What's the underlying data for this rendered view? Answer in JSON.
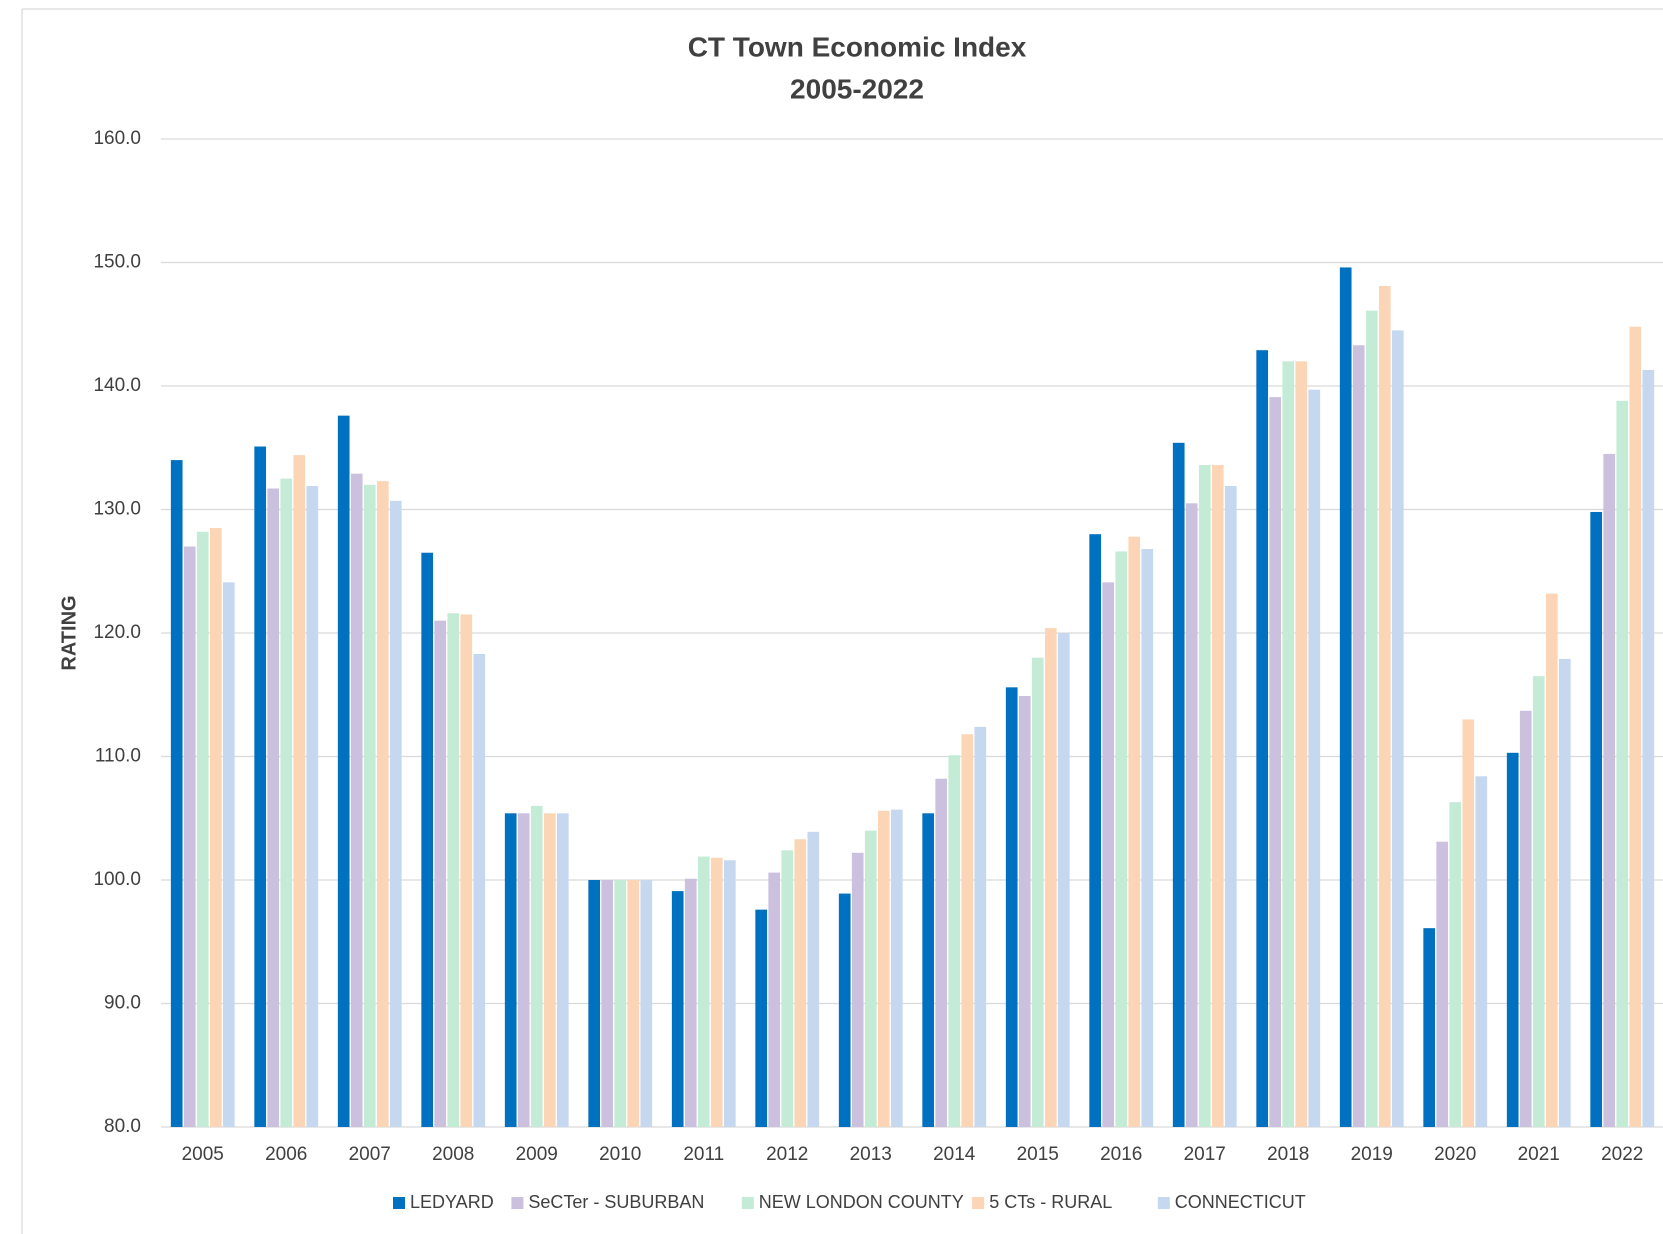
{
  "chart_data": {
    "type": "bar",
    "title": "CT Town Economic Index",
    "subtitle": "2005-2022",
    "y_label": "RATING",
    "categories": [
      "2005",
      "2006",
      "2007",
      "2008",
      "2009",
      "2010",
      "2011",
      "2012",
      "2013",
      "2014",
      "2015",
      "2016",
      "2017",
      "2018",
      "2019",
      "2020",
      "2021",
      "2022"
    ],
    "series": [
      {
        "name": "LEDYARD",
        "color": "#0070c0",
        "values": [
          134.0,
          135.1,
          137.6,
          126.5,
          105.4,
          100.0,
          99.1,
          97.6,
          98.9,
          105.4,
          115.6,
          128.0,
          135.4,
          142.9,
          149.6,
          96.1,
          110.3,
          129.8
        ]
      },
      {
        "name": "SeCTer - SUBURBAN",
        "color": "#cbc0dd",
        "values": [
          127.0,
          131.7,
          132.9,
          121.0,
          105.4,
          100.0,
          100.1,
          100.6,
          102.2,
          108.2,
          114.9,
          124.1,
          130.5,
          139.1,
          143.3,
          103.1,
          113.7,
          134.5
        ]
      },
      {
        "name": "NEW LONDON COUNTY",
        "color": "#c3ebd5",
        "values": [
          128.2,
          132.5,
          132.0,
          121.6,
          106.0,
          100.0,
          101.9,
          102.4,
          104.0,
          110.1,
          118.0,
          126.6,
          133.6,
          142.0,
          146.1,
          106.3,
          116.5,
          138.8
        ]
      },
      {
        "name": "5 CTs - RURAL",
        "color": "#fbd5b5",
        "values": [
          128.5,
          134.4,
          132.3,
          121.5,
          105.4,
          100.0,
          101.8,
          103.3,
          105.6,
          111.8,
          120.4,
          127.8,
          133.6,
          142.0,
          148.1,
          113.0,
          123.2,
          144.8
        ]
      },
      {
        "name": "CONNECTICUT",
        "color": "#c5d8f0",
        "values": [
          124.1,
          131.9,
          130.7,
          118.3,
          105.4,
          100.0,
          101.6,
          103.9,
          105.7,
          112.4,
          120.0,
          126.8,
          131.9,
          139.7,
          144.5,
          108.4,
          117.9,
          141.3
        ]
      }
    ],
    "ylim": [
      80,
      160
    ],
    "yticks": [
      {
        "value": 80,
        "label": "80.0"
      },
      {
        "value": 90,
        "label": "90.0"
      },
      {
        "value": 100,
        "label": "100.0"
      },
      {
        "value": 110,
        "label": "110.0"
      },
      {
        "value": 120,
        "label": "120.0"
      },
      {
        "value": 130,
        "label": "130.0"
      },
      {
        "value": 140,
        "label": "140.0"
      },
      {
        "value": 150,
        "label": "150.0"
      },
      {
        "value": 160,
        "label": "160.0"
      }
    ],
    "grid": true,
    "legend": "bottom"
  }
}
